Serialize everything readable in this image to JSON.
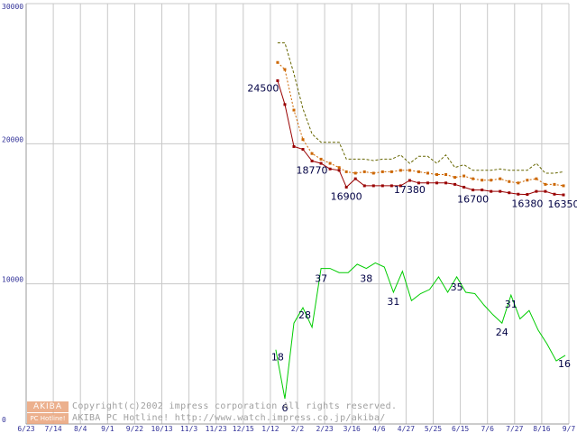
{
  "chart_data": {
    "type": "line",
    "title": "",
    "xlabel": "",
    "ylabel": "",
    "ylim": [
      0,
      30000
    ],
    "xlim": [
      0,
      30
    ],
    "y_ticks": [
      "0",
      "10000",
      "20000",
      "30000"
    ],
    "x_ticks": [
      "6/23",
      "7/14",
      "8/4",
      "9/1",
      "9/22",
      "10/13",
      "11/3",
      "11/23",
      "12/15",
      "1/12",
      "2/2",
      "2/23",
      "3/16",
      "4/6",
      "4/27",
      "5/25",
      "6/15",
      "7/6",
      "7/27",
      "8/16",
      "9/7"
    ],
    "grid": true,
    "series": [
      {
        "name": "price-max",
        "color": "#666600",
        "style": "dashed",
        "x": [
          13.9,
          14.3,
          14.8,
          15.3,
          15.8,
          16.3,
          16.8,
          17.3,
          17.7,
          18.2,
          18.7,
          19.2,
          19.7,
          20.2,
          20.7,
          21.2,
          21.7,
          22.2,
          22.7,
          23.2,
          23.7,
          24.2,
          24.7,
          25.2,
          25.7,
          26.2,
          26.7,
          27.2,
          27.7,
          28.2,
          28.7,
          29.2,
          29.7
        ],
        "values": [
          27200,
          27200,
          25000,
          22500,
          20700,
          20100,
          20100,
          20100,
          18900,
          18900,
          18900,
          18800,
          18900,
          18900,
          19200,
          18600,
          19100,
          19100,
          18600,
          19200,
          18300,
          18500,
          18100,
          18100,
          18100,
          18200,
          18100,
          18100,
          18100,
          18600,
          17900,
          17900,
          18000
        ]
      },
      {
        "name": "price-avg",
        "color": "#cc6600",
        "style": "dotted-markers",
        "x": [
          13.9,
          14.3,
          14.8,
          15.3,
          15.8,
          16.3,
          16.8,
          17.3,
          17.7,
          18.2,
          18.7,
          19.2,
          19.7,
          20.2,
          20.7,
          21.2,
          21.7,
          22.2,
          22.7,
          23.2,
          23.7,
          24.2,
          24.7,
          25.2,
          25.7,
          26.2,
          26.7,
          27.2,
          27.7,
          28.2,
          28.7,
          29.2,
          29.7
        ],
        "values": [
          25800,
          25300,
          22400,
          20300,
          19300,
          18900,
          18600,
          18300,
          18000,
          17900,
          18000,
          17900,
          18000,
          18000,
          18100,
          18100,
          18000,
          17900,
          17800,
          17800,
          17600,
          17700,
          17500,
          17400,
          17400,
          17500,
          17300,
          17200,
          17400,
          17500,
          17100,
          17100,
          17000
        ]
      },
      {
        "name": "price-min",
        "color": "#990000",
        "style": "solid-markers",
        "x": [
          13.9,
          14.3,
          14.8,
          15.3,
          15.8,
          16.3,
          16.8,
          17.3,
          17.7,
          18.2,
          18.7,
          19.2,
          19.7,
          20.2,
          20.7,
          21.2,
          21.7,
          22.2,
          22.7,
          23.2,
          23.7,
          24.2,
          24.7,
          25.2,
          25.7,
          26.2,
          26.7,
          27.2,
          27.7,
          28.2,
          28.7,
          29.2,
          29.7
        ],
        "values": [
          24500,
          22800,
          19800,
          19600,
          18770,
          18600,
          18200,
          18100,
          16900,
          17500,
          17000,
          17000,
          17000,
          17000,
          17000,
          17380,
          17200,
          17200,
          17200,
          17200,
          17100,
          16900,
          16700,
          16700,
          16600,
          16600,
          16500,
          16400,
          16380,
          16600,
          16600,
          16400,
          16350
        ]
      },
      {
        "name": "shop-count",
        "color": "#00cc00",
        "style": "solid",
        "x": [
          13.8,
          14.3,
          14.8,
          15.3,
          15.8,
          16.3,
          16.8,
          17.3,
          17.8,
          18.3,
          18.8,
          19.3,
          19.8,
          20.3,
          20.8,
          21.3,
          21.8,
          22.3,
          22.8,
          23.3,
          23.8,
          24.3,
          24.8,
          25.3,
          25.8,
          26.3,
          26.8,
          27.3,
          27.8,
          28.3,
          28.8,
          29.3,
          29.8
        ],
        "values": [
          5300,
          1800,
          7200,
          8300,
          6900,
          11100,
          11100,
          10800,
          10800,
          11400,
          11100,
          11500,
          11200,
          9400,
          10900,
          8800,
          9300,
          9600,
          10500,
          9400,
          10500,
          9400,
          9300,
          8500,
          7800,
          7200,
          9200,
          7500,
          8100,
          6700,
          5700,
          4500,
          4900
        ]
      }
    ],
    "data_labels": [
      {
        "text": "24500",
        "series": "price-min",
        "x": 13.9,
        "y": 24500
      },
      {
        "text": "18770",
        "series": "price-min",
        "x": 15.8,
        "y": 18770
      },
      {
        "text": "16900",
        "series": "price-min",
        "x": 17.7,
        "y": 16900
      },
      {
        "text": "17380",
        "series": "price-min",
        "x": 21.2,
        "y": 17380
      },
      {
        "text": "16700",
        "series": "price-min",
        "x": 24.7,
        "y": 16700
      },
      {
        "text": "16380",
        "series": "price-min",
        "x": 27.7,
        "y": 16380
      },
      {
        "text": "16350",
        "series": "price-min",
        "x": 29.7,
        "y": 16350
      },
      {
        "text": "18",
        "series": "shop-count",
        "x": 13.8,
        "y": 5300
      },
      {
        "text": "6",
        "series": "shop-count",
        "x": 14.3,
        "y": 1800
      },
      {
        "text": "28",
        "series": "shop-count",
        "x": 15.3,
        "y": 8300
      },
      {
        "text": "37",
        "series": "shop-count",
        "x": 16.3,
        "y": 11100
      },
      {
        "text": "38",
        "series": "shop-count",
        "x": 18.8,
        "y": 11100
      },
      {
        "text": "31",
        "series": "shop-count",
        "x": 20.3,
        "y": 9400
      },
      {
        "text": "35",
        "series": "shop-count",
        "x": 23.8,
        "y": 10500
      },
      {
        "text": "24",
        "series": "shop-count",
        "x": 26.3,
        "y": 7200
      },
      {
        "text": "31",
        "series": "shop-count",
        "x": 26.8,
        "y": 9200
      },
      {
        "text": "16",
        "series": "shop-count",
        "x": 29.8,
        "y": 4900
      }
    ]
  },
  "credit": {
    "logo_top": "AKIBA",
    "logo_bottom": "PC Hotline!",
    "line1": "Copyright(c)2002 impress corporation All rights reserved.",
    "line2": "AKIBA PC Hotline! http://www.watch.impress.co.jp/akiba/"
  }
}
